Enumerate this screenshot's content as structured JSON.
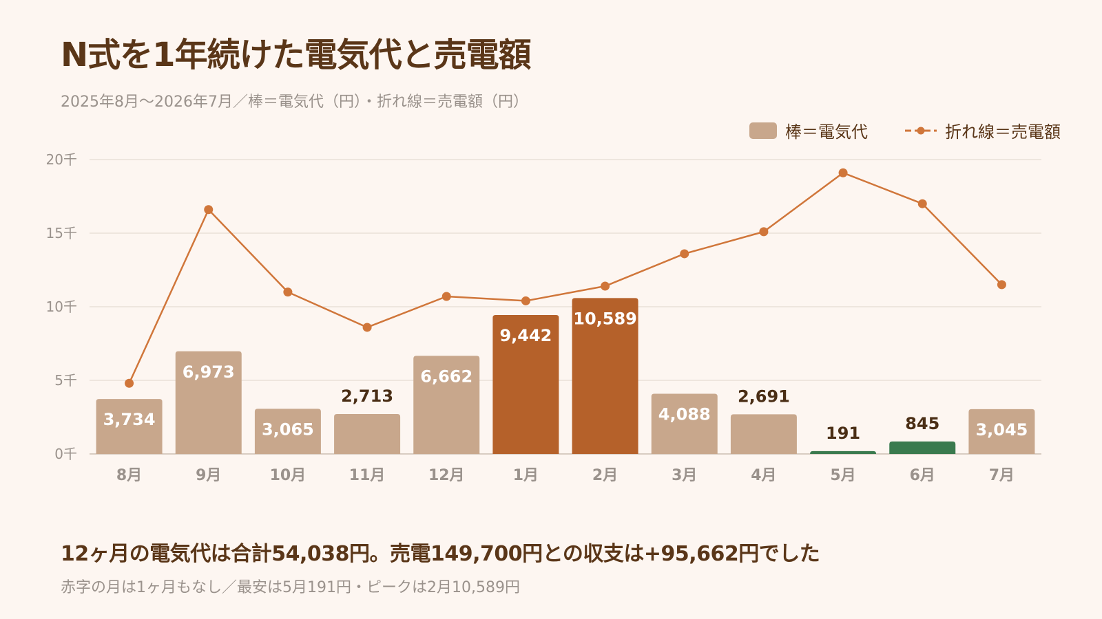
{
  "title": "N式を1年続けた電気代と売電額",
  "subtitle": "2025年8月〜2026年7月／棒＝電気代（円）・折れ線＝売電額（円）",
  "legend": {
    "bar_label": "棒＝電気代",
    "line_label": "折れ線＝売電額"
  },
  "colors": {
    "bar_normal": "#c8a78c",
    "bar_peak": "#b5612a",
    "bar_low": "#3a7a4e",
    "line": "#d0763a",
    "grid": "#e6dcd4",
    "axis_text": "#9a928c",
    "label_dark": "#4a2e15",
    "label_light": "#ffffff"
  },
  "chart_data": {
    "type": "bar",
    "categories": [
      "8月",
      "9月",
      "10月",
      "11月",
      "12月",
      "1月",
      "2月",
      "3月",
      "4月",
      "5月",
      "6月",
      "7月"
    ],
    "series": [
      {
        "name": "棒＝電気代",
        "type": "bar",
        "values": [
          3734,
          6973,
          3065,
          2713,
          6662,
          9442,
          10589,
          4088,
          2691,
          191,
          845,
          3045
        ],
        "labels": [
          "3,734",
          "6,973",
          "3,065",
          "2,713",
          "6,662",
          "9,442",
          "10,589",
          "4,088",
          "2,691",
          "191",
          "845",
          "3,045"
        ],
        "highlight": [
          "normal",
          "normal",
          "normal",
          "normal",
          "normal",
          "peak",
          "peak",
          "normal",
          "normal",
          "low",
          "low",
          "normal"
        ]
      },
      {
        "name": "折れ線＝売電額",
        "type": "line",
        "values": [
          4800,
          16600,
          11000,
          8600,
          10700,
          10400,
          11400,
          13600,
          15100,
          19100,
          17000,
          11500
        ]
      }
    ],
    "ylim": [
      0,
      20000
    ],
    "yticks": [
      0,
      5000,
      10000,
      15000,
      20000
    ],
    "ytick_labels": [
      "0千",
      "5千",
      "10千",
      "15千",
      "20千"
    ],
    "grid": true,
    "legend_position": "top-right"
  },
  "footer": {
    "main": "12ヶ月の電気代は合計54,038円。売電149,700円との収支は+95,662円でした",
    "sub": "赤字の月は1ヶ月もなし／最安は5月191円・ピークは2月10,589円"
  }
}
